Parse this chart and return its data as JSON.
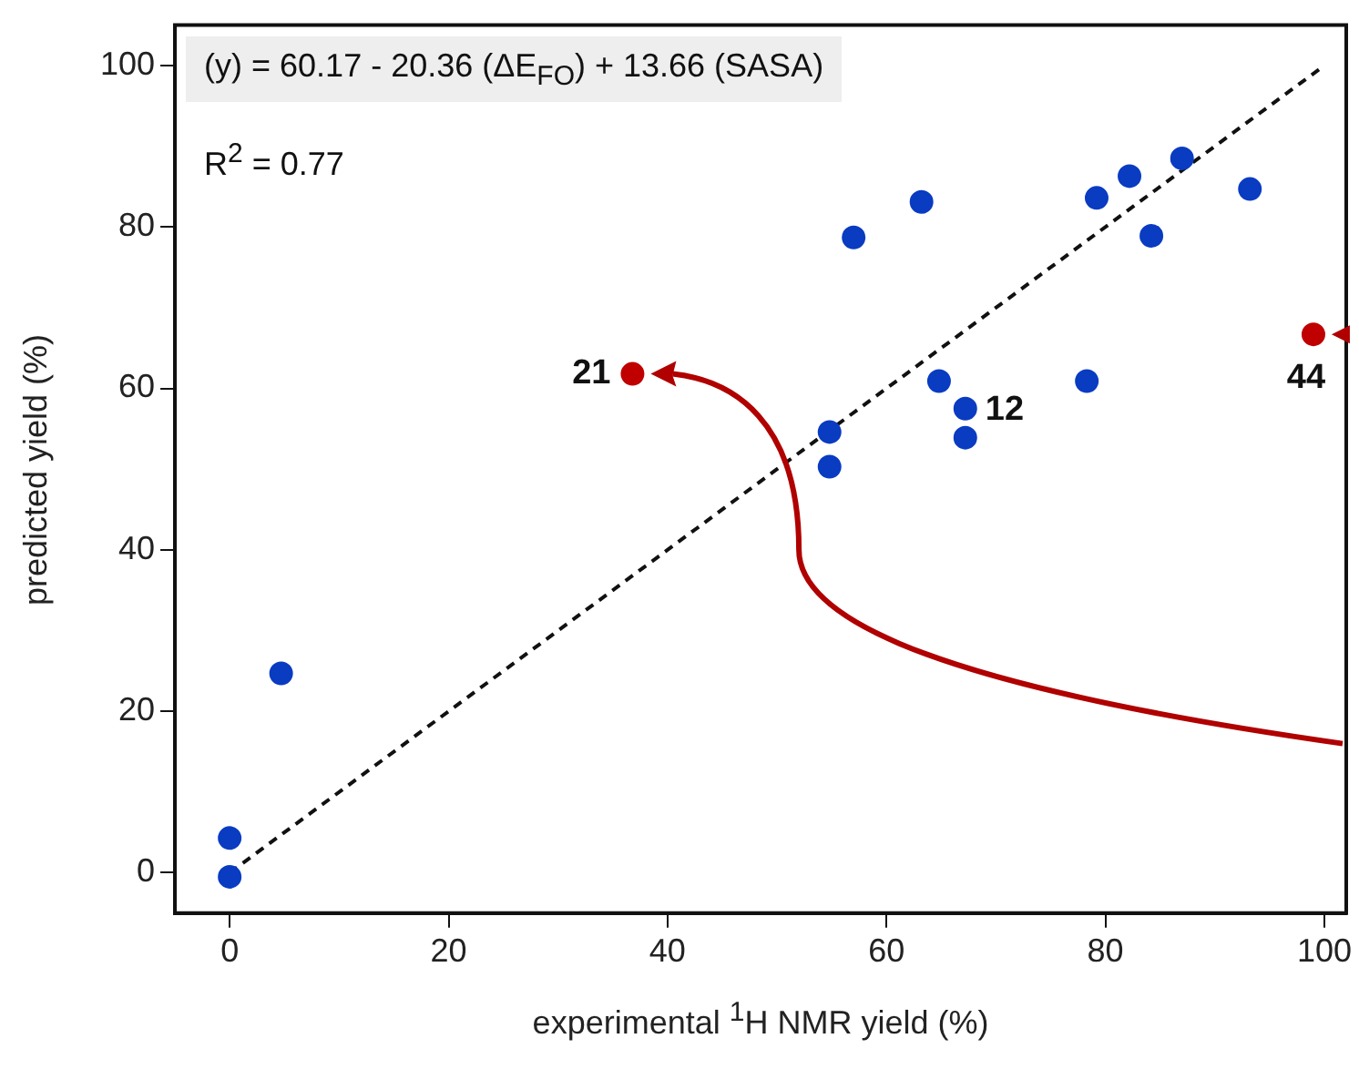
{
  "chart_data": {
    "type": "scatter",
    "xlabel": "experimental $^{1}$H NMR yield (%)",
    "ylabel": "predicted yield (%)",
    "annotations": [
      "(y) = 60.17 - 20.36 (ΔE$_{FO}$) + 13.66 (SASA)",
      "R$^{2}$ = 0.77",
      {
        "text": "21",
        "x": 36.8,
        "y": 61.8
      },
      {
        "text": "12",
        "x": 67.2,
        "y": 57.5
      },
      {
        "text": "44",
        "x": 99,
        "y": 66.7
      }
    ],
    "series": [
      {
        "type": "scatter",
        "color": "#0a3cc2",
        "x": [
          0,
          0,
          4.7,
          54.8,
          54.8,
          57,
          63.2,
          64.8,
          67.2,
          67.2,
          78.3,
          79.2,
          82.2,
          84.2,
          87,
          93.2
        ],
        "values": [
          4.3,
          -0.5,
          24.7,
          54.6,
          50.3,
          78.7,
          83.1,
          60.9,
          57.5,
          53.9,
          60.9,
          83.6,
          86.3,
          78.9,
          88.5,
          84.7
        ]
      },
      {
        "type": "scatter",
        "color": "#c00000",
        "x": [
          36.8,
          99
        ],
        "values": [
          61.8,
          66.7
        ]
      },
      {
        "type": "line",
        "color": "#111111",
        "line_style": "dashed",
        "marker": "none",
        "x": [
          0,
          100
        ],
        "values": [
          0,
          100
        ]
      }
    ],
    "marker": "circle",
    "xlim": [
      -5,
      102
    ],
    "ylim": [
      -5,
      105
    ],
    "xticks": [
      0,
      20,
      40,
      60,
      80,
      100
    ],
    "yticks": [
      0,
      20,
      40,
      60,
      80,
      100
    ],
    "grid": false,
    "legend": false
  }
}
